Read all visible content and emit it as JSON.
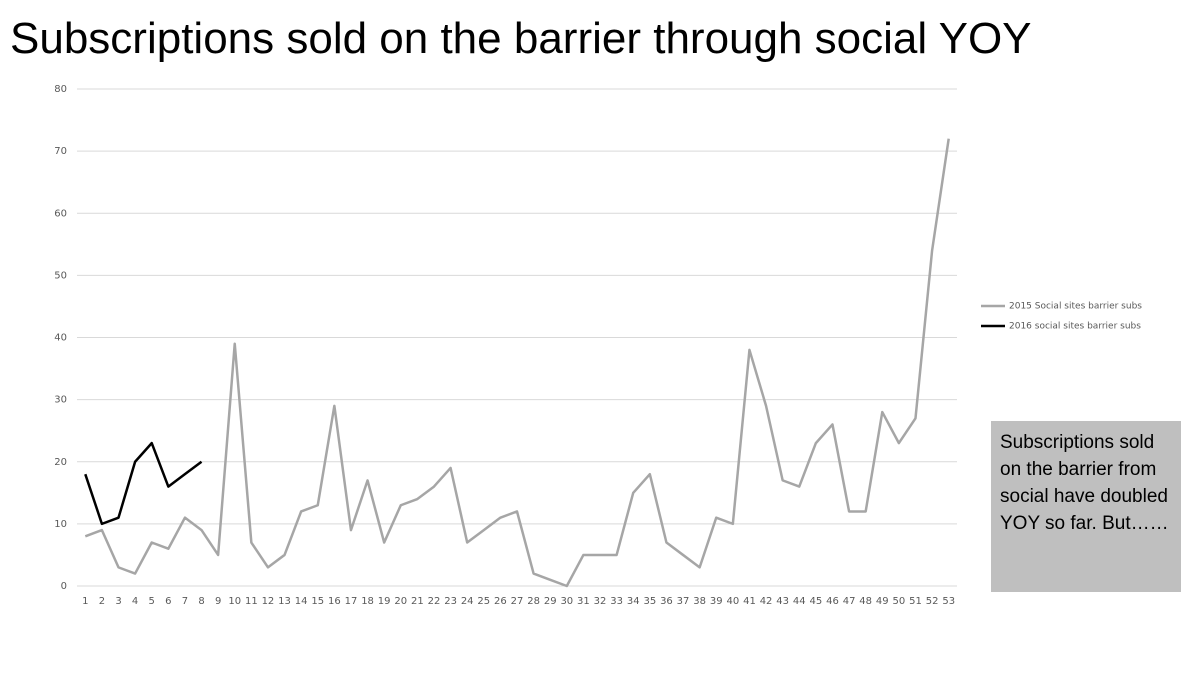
{
  "chart_data": {
    "type": "line",
    "title": "Subscriptions sold on the barrier through social YOY",
    "categories": [
      "1",
      "2",
      "3",
      "4",
      "5",
      "6",
      "7",
      "8",
      "9",
      "10",
      "11",
      "12",
      "13",
      "14",
      "15",
      "16",
      "17",
      "18",
      "19",
      "20",
      "21",
      "22",
      "23",
      "24",
      "25",
      "26",
      "27",
      "28",
      "29",
      "30",
      "31",
      "32",
      "33",
      "34",
      "35",
      "36",
      "37",
      "38",
      "39",
      "40",
      "41",
      "42",
      "43",
      "44",
      "45",
      "46",
      "47",
      "48",
      "49",
      "50",
      "51",
      "52",
      "53"
    ],
    "series": [
      {
        "name": "2015 Social sites barrier subs",
        "color": "#a6a6a6",
        "values": [
          8,
          9,
          3,
          2,
          7,
          6,
          11,
          9,
          5,
          39,
          7,
          3,
          5,
          12,
          13,
          29,
          9,
          17,
          7,
          13,
          14,
          16,
          19,
          7,
          9,
          11,
          12,
          2,
          1,
          0,
          5,
          5,
          5,
          15,
          18,
          7,
          5,
          3,
          11,
          10,
          38,
          29,
          17,
          16,
          23,
          26,
          12,
          12,
          28,
          23,
          27,
          54,
          72
        ]
      },
      {
        "name": "2016 social sites barrier subs",
        "color": "#000000",
        "values": [
          18,
          10,
          11,
          20,
          23,
          16,
          18,
          20,
          null,
          null,
          null,
          null,
          null,
          null,
          null,
          null,
          null,
          null,
          null,
          null,
          null,
          null,
          null,
          null,
          null,
          null,
          null,
          null,
          null,
          null,
          null,
          null,
          null,
          null,
          null,
          null,
          null,
          null,
          null,
          null,
          null,
          null,
          null,
          null,
          null,
          null,
          null,
          null,
          null,
          null,
          null,
          null,
          null
        ]
      }
    ],
    "ylim": [
      0,
      80
    ],
    "yticks": [
      0,
      10,
      20,
      30,
      40,
      50,
      60,
      70,
      80
    ],
    "grid": true,
    "legend": "right",
    "annotation": "Subscriptions sold on the barrier from social have doubled YOY so far.  But……"
  }
}
